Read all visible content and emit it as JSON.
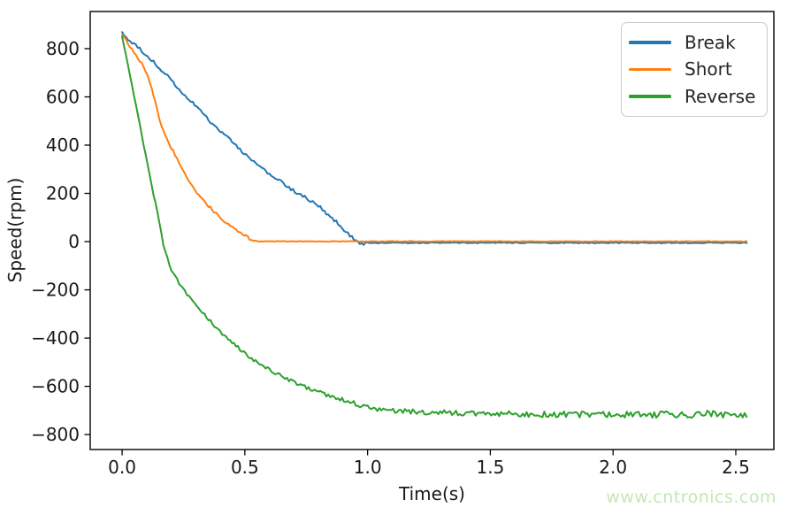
{
  "watermark": {
    "text": "www.cntronics.com",
    "color": "#c5e7b4"
  },
  "chart_data": {
    "type": "line",
    "title": "",
    "xlabel": "Time(s)",
    "ylabel": "Speed(rpm)",
    "xlim": [
      -0.13,
      2.655
    ],
    "ylim": [
      -862,
      954
    ],
    "grid": false,
    "axis_color": "#000000",
    "tick_label_color": "#1a1a1a",
    "line_width": 2,
    "sample_step": 0.008,
    "noise_seed": 20,
    "x_ticks": {
      "values": [
        0.0,
        0.5,
        1.0,
        1.5,
        2.0,
        2.5
      ],
      "labels": [
        "0.0",
        "0.5",
        "1.0",
        "1.5",
        "2.0",
        "2.5"
      ]
    },
    "y_ticks": {
      "values": [
        800,
        600,
        400,
        200,
        0,
        -200,
        -400,
        -600,
        -800
      ],
      "labels": [
        "800",
        "600",
        "400",
        "200",
        "0",
        "−200",
        "−400",
        "−600",
        "−800"
      ]
    },
    "legend": {
      "position": "upper right"
    },
    "series": [
      {
        "name": "Break",
        "color": "#1f77b4",
        "noise": {
          "start": 7,
          "end": 7
        },
        "anchors": [
          [
            0,
            865
          ],
          [
            0.02,
            842
          ],
          [
            0.05,
            818
          ],
          [
            0.08,
            790
          ],
          [
            0.1,
            772
          ],
          [
            0.13,
            742
          ],
          [
            0.15,
            722
          ],
          [
            0.18,
            692
          ],
          [
            0.2,
            665
          ],
          [
            0.23,
            635
          ],
          [
            0.25,
            612
          ],
          [
            0.28,
            585
          ],
          [
            0.3,
            560
          ],
          [
            0.33,
            530
          ],
          [
            0.35,
            508
          ],
          [
            0.38,
            478
          ],
          [
            0.41,
            452
          ],
          [
            0.44,
            420
          ],
          [
            0.47,
            392
          ],
          [
            0.5,
            365
          ],
          [
            0.52,
            342
          ],
          [
            0.55,
            318
          ],
          [
            0.58,
            295
          ],
          [
            0.62,
            268
          ],
          [
            0.65,
            245
          ],
          [
            0.68,
            222
          ],
          [
            0.72,
            198
          ],
          [
            0.75,
            180
          ],
          [
            0.77,
            168
          ],
          [
            0.8,
            148
          ],
          [
            0.82,
            128
          ],
          [
            0.85,
            104
          ],
          [
            0.87,
            84
          ],
          [
            0.89,
            64
          ],
          [
            0.91,
            44
          ],
          [
            0.93,
            25
          ],
          [
            0.95,
            8
          ],
          [
            0.97,
            -6
          ],
          [
            0.99,
            -12
          ]
        ],
        "flat_tail": {
          "start": 0.99,
          "end": 2.55,
          "value": -5,
          "noise": 2
        }
      },
      {
        "name": "Short",
        "color": "#ff7f0e",
        "noise": {
          "start": 6,
          "end": 6
        },
        "anchors": [
          [
            0,
            855
          ],
          [
            0.02,
            828
          ],
          [
            0.04,
            797
          ],
          [
            0.06,
            768
          ],
          [
            0.08,
            740
          ],
          [
            0.1,
            700
          ],
          [
            0.12,
            640
          ],
          [
            0.14,
            560
          ],
          [
            0.16,
            480
          ],
          [
            0.18,
            430
          ],
          [
            0.2,
            390
          ],
          [
            0.22,
            350
          ],
          [
            0.24,
            312
          ],
          [
            0.26,
            275
          ],
          [
            0.28,
            238
          ],
          [
            0.3,
            210
          ],
          [
            0.32,
            182
          ],
          [
            0.34,
            160
          ],
          [
            0.36,
            140
          ],
          [
            0.38,
            118
          ],
          [
            0.4,
            100
          ],
          [
            0.42,
            82
          ],
          [
            0.44,
            66
          ],
          [
            0.46,
            50
          ],
          [
            0.48,
            36
          ],
          [
            0.5,
            24
          ],
          [
            0.52,
            12
          ],
          [
            0.55,
            2
          ]
        ],
        "flat_tail": {
          "start": 0.55,
          "end": 2.55,
          "value": 1,
          "noise": 1.2
        }
      },
      {
        "name": "Reverse",
        "color": "#2ca02c",
        "noise": {
          "start": 5,
          "end": 16
        },
        "anchors": [
          [
            0,
            850
          ],
          [
            0.03,
            697
          ],
          [
            0.06,
            545
          ],
          [
            0.09,
            390
          ],
          [
            0.12,
            235
          ],
          [
            0.15,
            90
          ],
          [
            0.17,
            -25
          ],
          [
            0.2,
            -120
          ],
          [
            0.24,
            -185
          ],
          [
            0.28,
            -240
          ],
          [
            0.33,
            -295
          ],
          [
            0.38,
            -355
          ],
          [
            0.43,
            -405
          ],
          [
            0.48,
            -445
          ],
          [
            0.53,
            -485
          ],
          [
            0.58,
            -520
          ],
          [
            0.63,
            -548
          ],
          [
            0.68,
            -572
          ],
          [
            0.73,
            -595
          ],
          [
            0.78,
            -615
          ],
          [
            0.83,
            -638
          ],
          [
            0.88,
            -652
          ],
          [
            0.93,
            -665
          ],
          [
            1.0,
            -688
          ],
          [
            1.05,
            -697
          ],
          [
            1.12,
            -702
          ],
          [
            1.2,
            -706
          ],
          [
            1.35,
            -710
          ],
          [
            1.5,
            -714
          ],
          [
            1.75,
            -716
          ],
          [
            2.0,
            -717
          ],
          [
            2.25,
            -716
          ],
          [
            2.55,
            -714
          ]
        ],
        "flat_tail": null
      }
    ]
  }
}
